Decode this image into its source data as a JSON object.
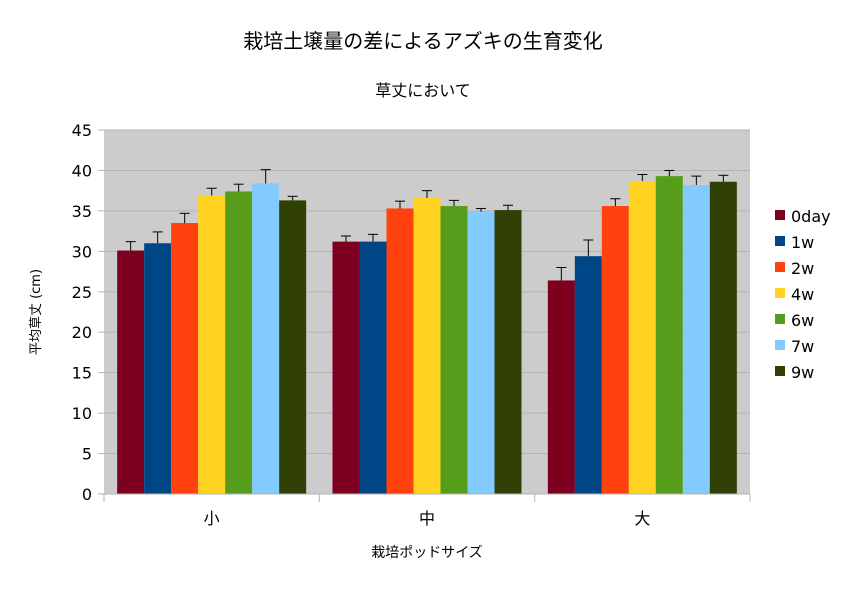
{
  "chart_data": {
    "type": "bar",
    "title": "栽培土壌量の差によるアズキの生育変化",
    "subtitle": "草丈において",
    "xlabel": "栽培ポッドサイズ",
    "ylabel": "平均草丈 (cm)",
    "ylim": [
      0,
      45
    ],
    "ytick_step": 5,
    "yticks": [
      "0",
      "5",
      "10",
      "15",
      "20",
      "25",
      "30",
      "35",
      "40",
      "45"
    ],
    "grid": true,
    "legend_position": "right",
    "categories": [
      "小",
      "中",
      "大"
    ],
    "series": [
      {
        "name": "0day",
        "color": "#7e0021",
        "values": [
          30.1,
          31.2,
          26.4
        ],
        "errors": [
          1.1,
          0.7,
          1.6
        ]
      },
      {
        "name": "1w",
        "color": "#004586",
        "values": [
          31.0,
          31.2,
          29.4
        ],
        "errors": [
          1.4,
          0.9,
          2.0
        ]
      },
      {
        "name": "2w",
        "color": "#ff420e",
        "values": [
          33.5,
          35.3,
          35.6
        ],
        "errors": [
          1.2,
          0.9,
          0.9
        ]
      },
      {
        "name": "4w",
        "color": "#ffd320",
        "values": [
          36.9,
          36.6,
          38.7
        ],
        "errors": [
          0.9,
          0.9,
          0.8
        ]
      },
      {
        "name": "6w",
        "color": "#579d1c",
        "values": [
          37.4,
          35.6,
          39.3
        ],
        "errors": [
          0.9,
          0.7,
          0.7
        ]
      },
      {
        "name": "7w",
        "color": "#83caff",
        "values": [
          38.4,
          34.9,
          38.2
        ],
        "errors": [
          1.7,
          0.4,
          1.1
        ]
      },
      {
        "name": "9w",
        "color": "#314004",
        "values": [
          36.3,
          35.1,
          38.6
        ],
        "errors": [
          0.5,
          0.6,
          0.8
        ]
      }
    ]
  }
}
